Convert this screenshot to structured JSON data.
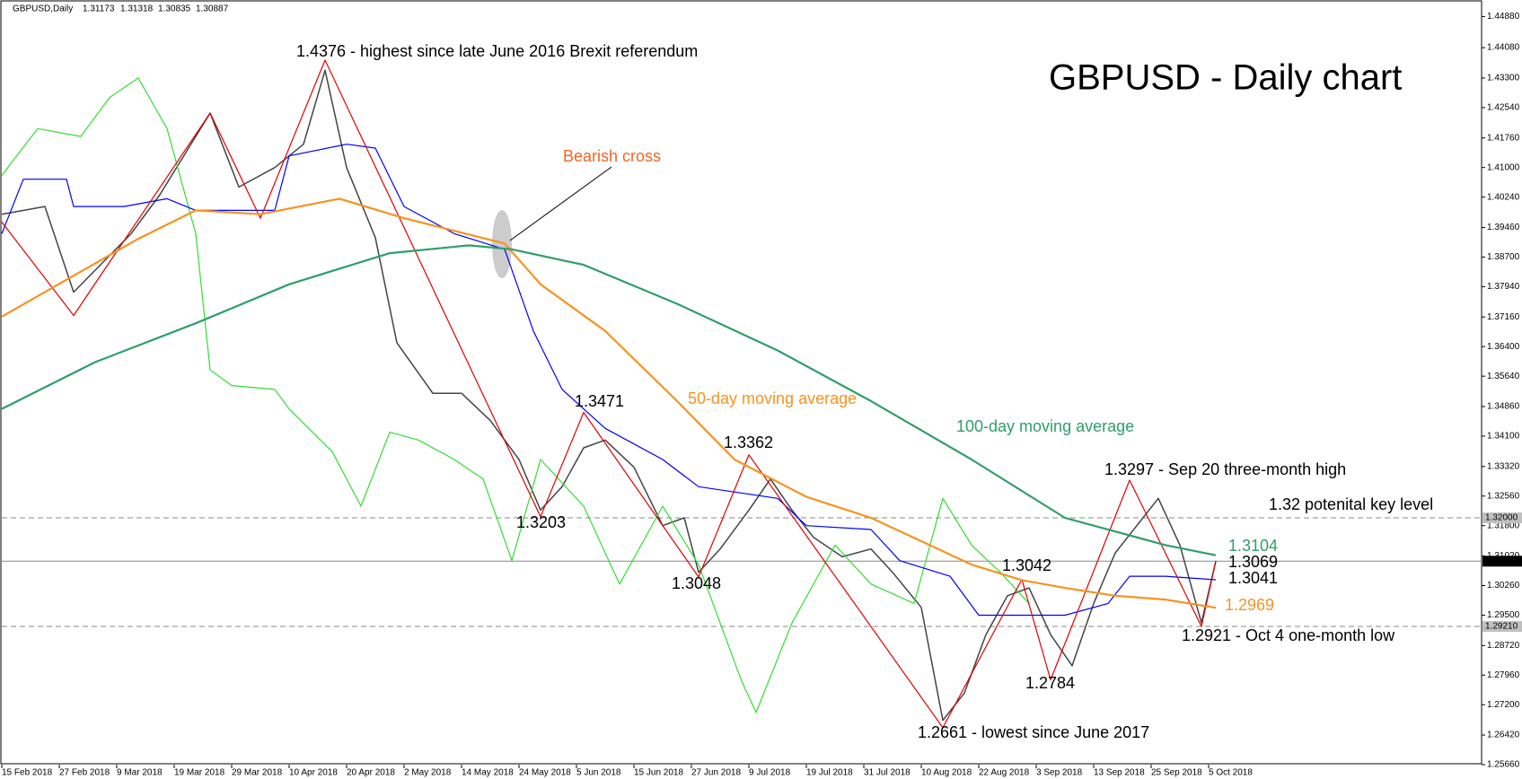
{
  "chart_data": {
    "type": "line",
    "title": "GBPUSD - Daily chart",
    "header": {
      "symbol": "GBPUSD,Daily",
      "ohlc": [
        1.31173,
        1.31318,
        1.30835,
        1.30887
      ]
    },
    "xlim": [
      0,
      206
    ],
    "ylim": [
      1.2566,
      1.4488
    ],
    "xticks": [
      {
        "value": 0,
        "label": "15 Feb 2018"
      },
      {
        "value": 8,
        "label": "27 Feb 2018"
      },
      {
        "value": 16,
        "label": "9 Mar 2018"
      },
      {
        "value": 24,
        "label": "19 Mar 2018"
      },
      {
        "value": 32,
        "label": "29 Mar 2018"
      },
      {
        "value": 40,
        "label": "10 Apr 2018"
      },
      {
        "value": 48,
        "label": "20 Apr 2018"
      },
      {
        "value": 56,
        "label": "2 May 2018"
      },
      {
        "value": 64,
        "label": "14 May 2018"
      },
      {
        "value": 72,
        "label": "24 May 2018"
      },
      {
        "value": 80,
        "label": "5 Jun 2018"
      },
      {
        "value": 88,
        "label": "15 Jun 2018"
      },
      {
        "value": 96,
        "label": "27 Jun 2018"
      },
      {
        "value": 104,
        "label": "9 Jul 2018"
      },
      {
        "value": 112,
        "label": "19 Jul 2018"
      },
      {
        "value": 120,
        "label": "31 Jul 2018"
      },
      {
        "value": 128,
        "label": "10 Aug 2018"
      },
      {
        "value": 136,
        "label": "22 Aug 2018"
      },
      {
        "value": 144,
        "label": "3 Sep 2018"
      },
      {
        "value": 152,
        "label": "13 Sep 2018"
      },
      {
        "value": 160,
        "label": "25 Sep 2018"
      },
      {
        "value": 168,
        "label": "5 Oct 2018"
      }
    ],
    "yticks": [
      {
        "value": 1.4488,
        "label": "1.44880"
      },
      {
        "value": 1.4408,
        "label": "1.44080"
      },
      {
        "value": 1.433,
        "label": "1.43300"
      },
      {
        "value": 1.4254,
        "label": "1.42540"
      },
      {
        "value": 1.4176,
        "label": "1.41760"
      },
      {
        "value": 1.41,
        "label": "1.41000"
      },
      {
        "value": 1.4024,
        "label": "1.40240"
      },
      {
        "value": 1.3946,
        "label": "1.39460"
      },
      {
        "value": 1.387,
        "label": "1.38700"
      },
      {
        "value": 1.3794,
        "label": "1.37940"
      },
      {
        "value": 1.3716,
        "label": "1.37160"
      },
      {
        "value": 1.364,
        "label": "1.36400"
      },
      {
        "value": 1.3564,
        "label": "1.35640"
      },
      {
        "value": 1.3486,
        "label": "1.34860"
      },
      {
        "value": 1.341,
        "label": "1.34100"
      },
      {
        "value": 1.3332,
        "label": "1.33320"
      },
      {
        "value": 1.3256,
        "label": "1.32560"
      },
      {
        "value": 1.318,
        "label": "1.31800"
      },
      {
        "value": 1.3102,
        "label": "1.31020"
      },
      {
        "value": 1.3026,
        "label": "1.30260"
      },
      {
        "value": 1.295,
        "label": "1.29500"
      },
      {
        "value": 1.2872,
        "label": "1.28720"
      },
      {
        "value": 1.2796,
        "label": "1.27960"
      },
      {
        "value": 1.272,
        "label": "1.27200"
      },
      {
        "value": 1.2642,
        "label": "1.26420"
      },
      {
        "value": 1.2566,
        "label": "1.25660"
      }
    ],
    "hlines": [
      {
        "value": 1.32,
        "label": "1.32000",
        "style": "dashed",
        "label_bg": "#c0c0c0",
        "label_color": "#000"
      },
      {
        "value": 1.30887,
        "label": "1.30887",
        "style": "solid",
        "label_bg": "#000",
        "label_color": "#fff"
      },
      {
        "value": 1.2921,
        "label": "1.29210",
        "style": "dashed",
        "label_bg": "#c0c0c0",
        "label_color": "#000"
      }
    ],
    "series": [
      {
        "color": "#444444",
        "width": 1.5,
        "x": [
          0,
          6,
          10,
          18,
          22,
          29,
          33,
          38,
          42,
          45,
          48,
          52,
          55,
          60,
          64,
          68,
          72,
          75,
          78,
          81,
          84,
          88,
          92,
          95,
          97,
          100,
          104,
          107,
          110,
          113,
          117,
          121,
          124,
          128,
          131,
          134,
          137,
          140,
          143,
          146,
          149,
          152,
          155,
          158,
          161,
          164,
          167,
          169
        ],
        "values": [
          1.398,
          1.4,
          1.378,
          1.393,
          1.403,
          1.424,
          1.405,
          1.41,
          1.416,
          1.435,
          1.41,
          1.392,
          1.365,
          1.352,
          1.352,
          1.345,
          1.335,
          1.322,
          1.328,
          1.338,
          1.34,
          1.333,
          1.318,
          1.32,
          1.306,
          1.312,
          1.322,
          1.33,
          1.322,
          1.315,
          1.31,
          1.312,
          1.306,
          1.297,
          1.268,
          1.275,
          1.29,
          1.3,
          1.302,
          1.29,
          1.282,
          1.298,
          1.311,
          1.318,
          1.325,
          1.313,
          1.293,
          1.3089
        ]
      },
      {
        "color": "#33dd33",
        "width": 1.2,
        "x": [
          0,
          5,
          11,
          15,
          19,
          23,
          27,
          29,
          32,
          38,
          40,
          46,
          50,
          54,
          58,
          63,
          67,
          71,
          75,
          81,
          86,
          92,
          97,
          103,
          105,
          110,
          116,
          121,
          127,
          131,
          135,
          139,
          143
        ],
        "values": [
          1.408,
          1.42,
          1.418,
          1.428,
          1.433,
          1.42,
          1.393,
          1.358,
          1.354,
          1.353,
          1.348,
          1.337,
          1.323,
          1.342,
          1.34,
          1.335,
          1.33,
          1.309,
          1.335,
          1.323,
          1.303,
          1.323,
          1.308,
          1.278,
          1.27,
          1.293,
          1.313,
          1.303,
          1.298,
          1.325,
          1.313,
          1.306,
          1.298
        ]
      },
      {
        "color": "#0000ff",
        "width": 1.2,
        "x": [
          0,
          3,
          9,
          10,
          17,
          23,
          27,
          38,
          40,
          48,
          52,
          56,
          63,
          70,
          74,
          78,
          84,
          92,
          97,
          108,
          112,
          121,
          125,
          132,
          136,
          143,
          148,
          154,
          157,
          162,
          169
        ],
        "values": [
          1.393,
          1.407,
          1.407,
          1.4,
          1.4,
          1.402,
          1.399,
          1.399,
          1.413,
          1.416,
          1.415,
          1.4,
          1.393,
          1.389,
          1.368,
          1.353,
          1.343,
          1.335,
          1.328,
          1.325,
          1.318,
          1.317,
          1.309,
          1.305,
          1.295,
          1.295,
          1.295,
          1.298,
          1.305,
          1.305,
          1.3041
        ]
      },
      {
        "color": "#e00000",
        "width": 1.2,
        "x": [
          0,
          10,
          29,
          36,
          45,
          75,
          81,
          97,
          104,
          131,
          142,
          146,
          157,
          167,
          169
        ],
        "values": [
          1.396,
          1.372,
          1.424,
          1.397,
          1.4376,
          1.3203,
          1.3471,
          1.3048,
          1.3362,
          1.2661,
          1.3042,
          1.2784,
          1.3297,
          1.2921,
          1.3089
        ]
      },
      {
        "name": "50-day moving average",
        "color": "#f7931e",
        "width": 2.2,
        "x": [
          0,
          19,
          27,
          36,
          47,
          56,
          70,
          75,
          84,
          94,
          102,
          112,
          121,
          128,
          135,
          142,
          148,
          155,
          162,
          169
        ],
        "values": [
          1.3717,
          1.3917,
          1.399,
          1.398,
          1.402,
          1.397,
          1.3905,
          1.38,
          1.368,
          1.35,
          1.335,
          1.3254,
          1.32,
          1.314,
          1.308,
          1.304,
          1.302,
          1.3,
          1.299,
          1.2969
        ]
      },
      {
        "name": "100-day moving average",
        "color": "#2e9e6a",
        "width": 2.2,
        "x": [
          0,
          13,
          27,
          40,
          54,
          65,
          71,
          81,
          94,
          108,
          121,
          135,
          148,
          162,
          169
        ],
        "values": [
          1.348,
          1.36,
          1.37,
          1.38,
          1.388,
          1.39,
          1.389,
          1.385,
          1.375,
          1.363,
          1.35,
          1.335,
          1.32,
          1.313,
          1.3104
        ]
      }
    ],
    "annotations": [
      {
        "text": "1.4376 - highest since late June 2016 Brexit referendum",
        "color": "#000000"
      },
      {
        "text": "1.3471",
        "color": "#000000"
      },
      {
        "text": "1.3362",
        "color": "#000000"
      },
      {
        "text": "1.3203",
        "color": "#000000"
      },
      {
        "text": "1.3048",
        "color": "#000000"
      },
      {
        "text": "1.3042",
        "color": "#000000"
      },
      {
        "text": "1.2784",
        "color": "#000000"
      },
      {
        "text": "1.2661 - lowest since June 2017",
        "color": "#000000"
      },
      {
        "text": "1.3297 - Sep 20 three-month high",
        "color": "#000000"
      },
      {
        "text": "1.32 potenital key level",
        "color": "#000000"
      },
      {
        "text": "1.3104",
        "color": "#2e9e6a"
      },
      {
        "text": "1.3069",
        "color": "#000000"
      },
      {
        "text": "1.3041",
        "color": "#000000"
      },
      {
        "text": "1.2969",
        "color": "#f7931e"
      },
      {
        "text": "1.2921 - Oct 4 one-month low",
        "color": "#000000"
      },
      {
        "text": "Bearish cross",
        "color": "#f26522"
      }
    ]
  }
}
